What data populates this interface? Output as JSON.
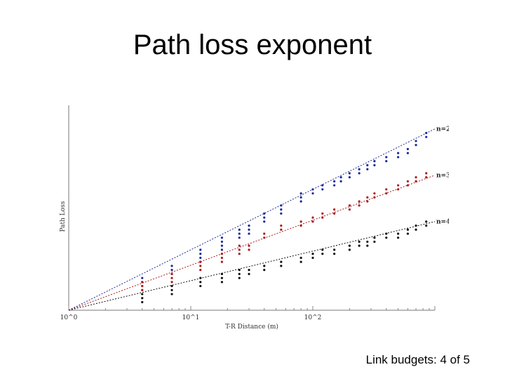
{
  "slide": {
    "title": "Path loss exponent",
    "footer": "Link budgets: 4 of 5"
  },
  "chart_data": {
    "type": "scatter",
    "title": "",
    "xlabel": "T-R Distance (m)",
    "ylabel": "Path Loss",
    "xscale": "log",
    "xlim": [
      1,
      1000
    ],
    "ylim": [
      0,
      100
    ],
    "xticks": [
      "10^0",
      "10^1",
      "10^2"
    ],
    "grid": false,
    "series": [
      {
        "name": "n=2",
        "color": "#1a2a9a",
        "fit": {
          "x": [
            1,
            1000
          ],
          "y": [
            0,
            90
          ]
        },
        "x": [
          4,
          4,
          4,
          4,
          7,
          7,
          7,
          12,
          12,
          12,
          12,
          18,
          18,
          18,
          18,
          25,
          25,
          25,
          30,
          30,
          30,
          40,
          40,
          40,
          55,
          55,
          55,
          80,
          80,
          80,
          100,
          100,
          120,
          120,
          150,
          150,
          170,
          170,
          200,
          200,
          240,
          240,
          280,
          280,
          320,
          320,
          400,
          400,
          500,
          500,
          600,
          600,
          700,
          700,
          850,
          850
        ],
        "y": [
          10,
          12,
          14,
          16,
          18,
          20,
          22,
          24,
          26,
          28,
          30,
          30,
          32,
          34,
          36,
          36,
          38,
          40,
          38,
          40,
          42,
          44,
          46,
          48,
          48,
          50,
          52,
          54,
          56,
          58,
          58,
          60,
          60,
          62,
          62,
          64,
          64,
          66,
          66,
          68,
          68,
          70,
          70,
          72,
          72,
          74,
          74,
          76,
          76,
          78,
          78,
          80,
          82,
          84,
          86,
          88
        ]
      },
      {
        "name": "n=3",
        "color": "#b01818",
        "fit": {
          "x": [
            1,
            1000
          ],
          "y": [
            0,
            67
          ]
        },
        "x": [
          4,
          4,
          4,
          7,
          7,
          7,
          12,
          12,
          12,
          18,
          18,
          18,
          25,
          25,
          25,
          30,
          30,
          40,
          40,
          55,
          55,
          80,
          80,
          100,
          100,
          120,
          120,
          150,
          150,
          200,
          200,
          240,
          240,
          280,
          280,
          320,
          320,
          400,
          400,
          500,
          500,
          600,
          600,
          700,
          700,
          850,
          850
        ],
        "y": [
          10,
          12,
          14,
          14,
          16,
          18,
          20,
          22,
          24,
          24,
          26,
          28,
          28,
          30,
          32,
          30,
          32,
          36,
          38,
          40,
          42,
          42,
          44,
          44,
          46,
          46,
          48,
          48,
          50,
          50,
          52,
          52,
          54,
          54,
          56,
          56,
          58,
          58,
          60,
          60,
          62,
          62,
          64,
          64,
          66,
          66,
          68
        ]
      },
      {
        "name": "n=4",
        "color": "#101010",
        "fit": {
          "x": [
            1,
            1000
          ],
          "y": [
            0,
            44
          ]
        },
        "x": [
          4,
          4,
          4,
          7,
          7,
          7,
          12,
          12,
          12,
          18,
          18,
          18,
          25,
          25,
          25,
          30,
          30,
          40,
          40,
          55,
          55,
          80,
          80,
          100,
          100,
          120,
          120,
          150,
          150,
          200,
          200,
          240,
          240,
          280,
          280,
          320,
          320,
          400,
          400,
          500,
          500,
          600,
          600,
          700,
          700,
          850,
          850
        ],
        "y": [
          4,
          6,
          8,
          8,
          10,
          12,
          12,
          14,
          16,
          14,
          16,
          18,
          16,
          18,
          20,
          18,
          20,
          20,
          22,
          22,
          24,
          24,
          26,
          26,
          28,
          28,
          30,
          28,
          30,
          30,
          32,
          32,
          34,
          32,
          34,
          34,
          36,
          36,
          38,
          36,
          38,
          38,
          40,
          40,
          42,
          42,
          44
        ]
      }
    ]
  }
}
